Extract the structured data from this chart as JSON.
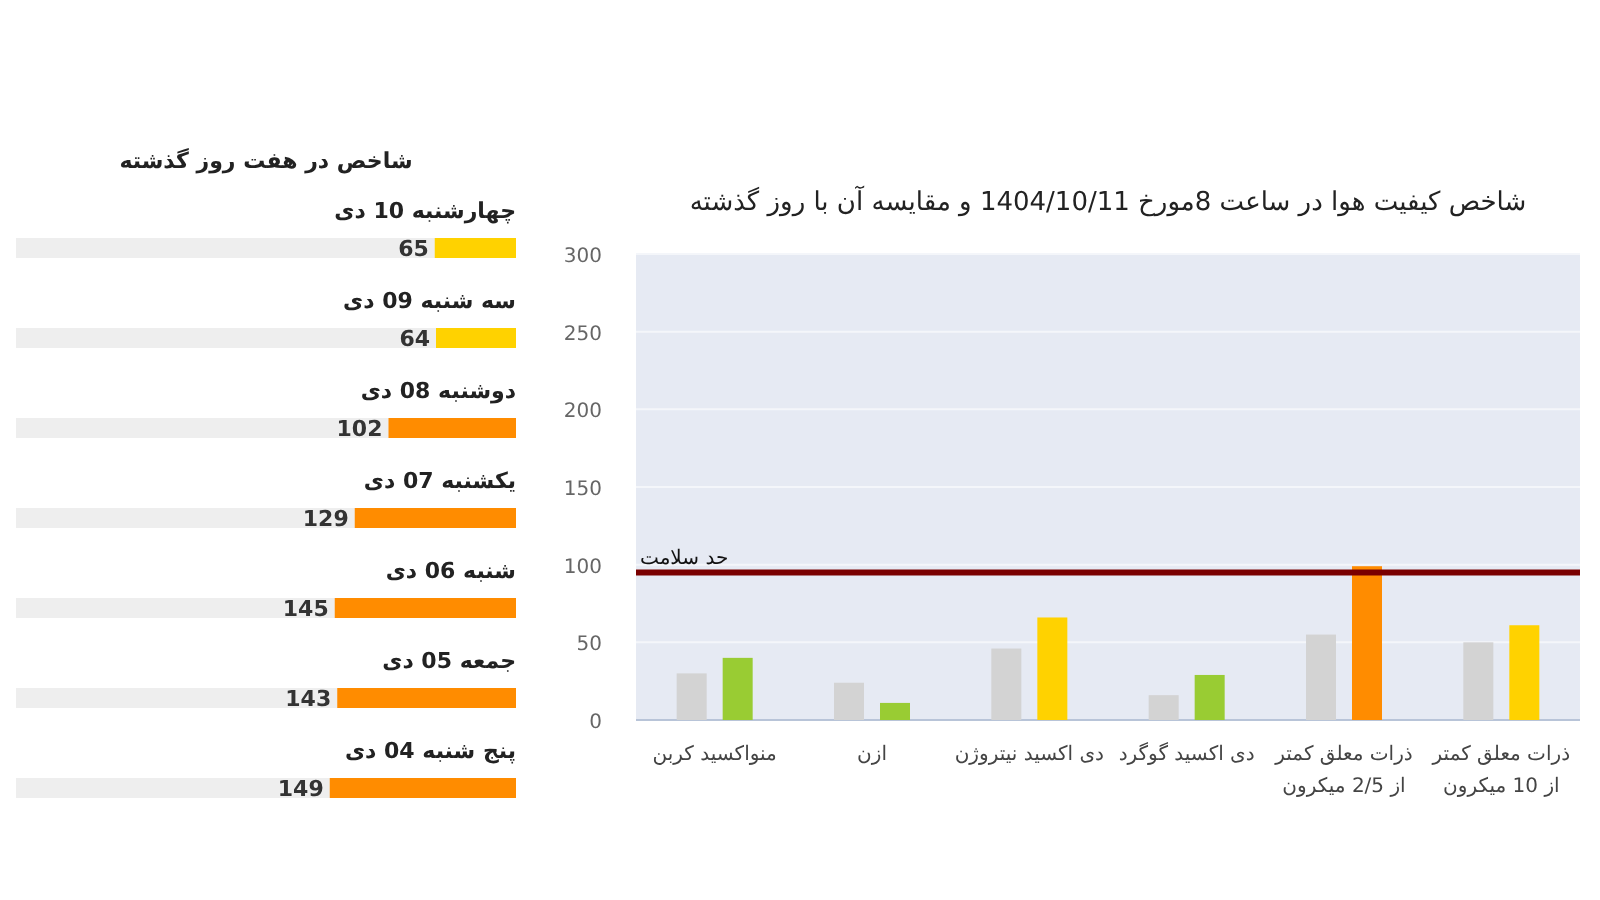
{
  "chart_data": [
    {
      "type": "bar",
      "orientation": "horizontal",
      "title": "شاخص در هفت روز گذشته",
      "categories": [
        "چهارشنبه 10 دی",
        "سه شنبه 09 دی",
        "دوشنبه 08 دی",
        "یکشنبه 07 دی",
        "شنبه 06 دی",
        "جمعه 05 دی",
        "پنج شنبه 04 دی"
      ],
      "values": [
        65,
        64,
        102,
        129,
        145,
        143,
        149
      ],
      "colors": [
        "#ffd200",
        "#ffd200",
        "#ff8c00",
        "#ff8c00",
        "#ff8c00",
        "#ff8c00",
        "#ff8c00"
      ],
      "xlim": [
        400,
        0
      ],
      "data_labels": true
    },
    {
      "type": "bar",
      "title": "شاخص کیفیت هوا در ساعت 8مورخ 1404/10/11 و مقایسه آن با روز گذشته",
      "categories": [
        "منواکسید کربن",
        "ازن",
        "دی اکسید نیتروژن",
        "دی اکسید گوگرد",
        "ذرات معلق کمتر از 2/5 میکرون",
        "ذرات معلق کمتر از 10 میکرون"
      ],
      "series": [
        {
          "color": "#d3d3d3",
          "values": [
            30,
            24,
            46,
            16,
            55,
            50
          ]
        },
        {
          "colors": [
            "#99cc33",
            "#99cc33",
            "#ffd200",
            "#99cc33",
            "#ff8c00",
            "#ffd200"
          ],
          "values": [
            40,
            11,
            66,
            29,
            99,
            61
          ]
        }
      ],
      "ylim": [
        0,
        300
      ],
      "yticks": [
        0,
        50,
        100,
        150,
        200,
        250,
        300
      ],
      "grid": "y",
      "ref_lines": [
        {
          "axis": "y",
          "value": 95,
          "label": "حد سلامت",
          "color": "#7a0000"
        }
      ]
    }
  ]
}
